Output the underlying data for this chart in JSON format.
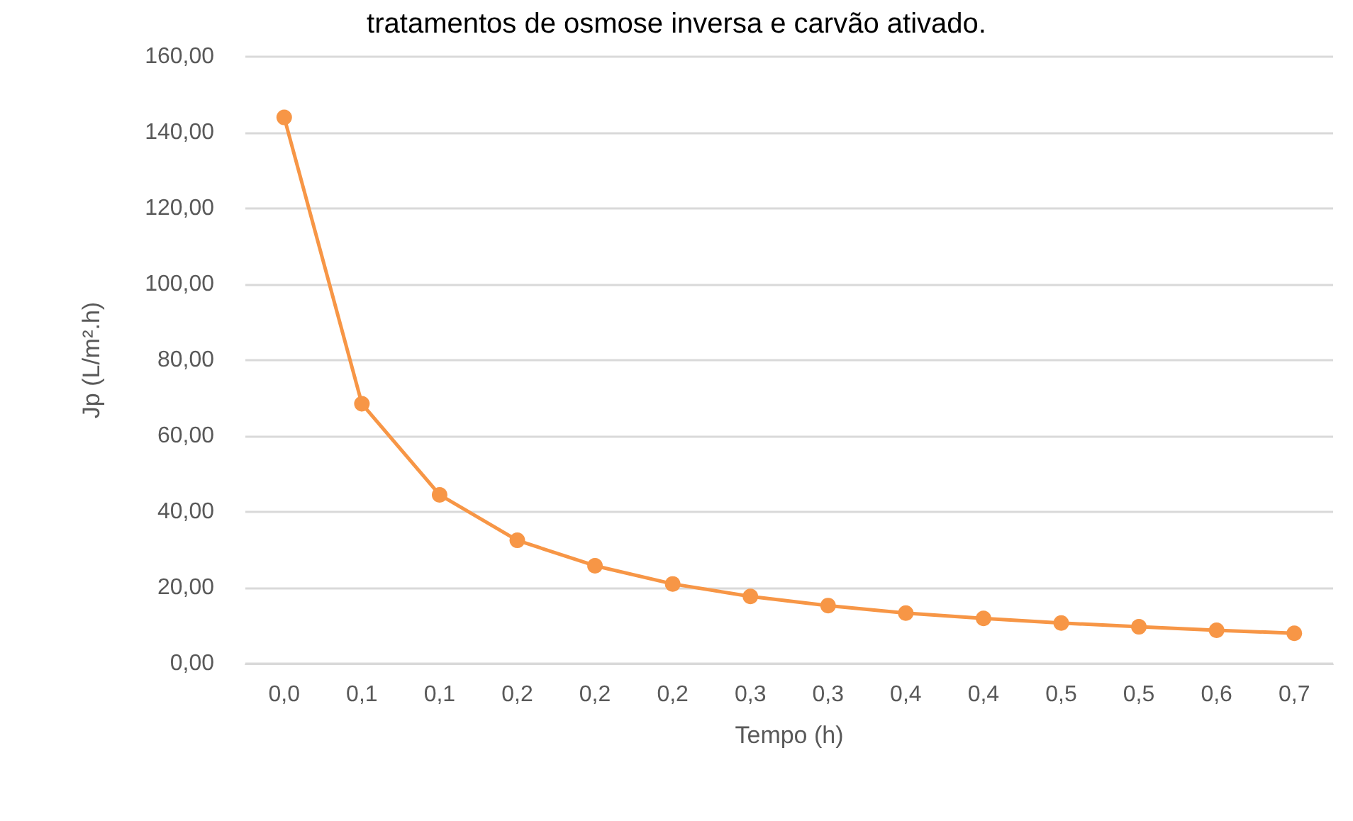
{
  "chart_data": {
    "type": "line",
    "title": "tratamentos de osmose inversa e carvão ativado.",
    "xlabel": "Tempo (h)",
    "ylabel": "Jp (L/m².h)",
    "categories": [
      "0,0",
      "0,1",
      "0,1",
      "0,2",
      "0,2",
      "0,2",
      "0,3",
      "0,3",
      "0,4",
      "0,4",
      "0,5",
      "0,5",
      "0,6",
      "0,7"
    ],
    "series": [
      {
        "color": "#f79646",
        "values": [
          144,
          68.5,
          44.5,
          32.5,
          25.8,
          21,
          17.7,
          15.3,
          13.3,
          11.9,
          10.7,
          9.7,
          8.8,
          8.0
        ]
      }
    ],
    "ylim": [
      0,
      160
    ],
    "yticks": [
      {
        "value": 0,
        "label": "0,00"
      },
      {
        "value": 20,
        "label": "20,00"
      },
      {
        "value": 40,
        "label": "40,00"
      },
      {
        "value": 60,
        "label": "60,00"
      },
      {
        "value": 80,
        "label": "80,00"
      },
      {
        "value": 100,
        "label": "100,00"
      },
      {
        "value": 120,
        "label": "120,00"
      },
      {
        "value": 140,
        "label": "140,00"
      },
      {
        "value": 160,
        "label": "160,00"
      }
    ],
    "grid": "y",
    "marker": "circle",
    "line_style": "solid"
  }
}
